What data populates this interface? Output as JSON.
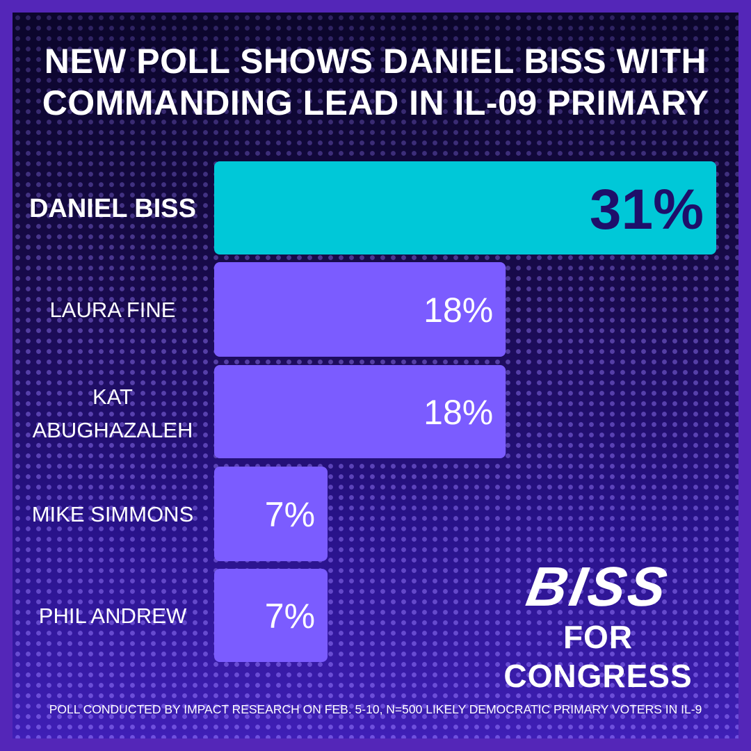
{
  "chart_data": {
    "type": "bar",
    "orientation": "horizontal",
    "title": "NEW POLL SHOWS DANIEL BISS WITH COMMANDING LEAD IN IL-09 PRIMARY",
    "categories": [
      "DANIEL BISS",
      "LAURA FINE",
      "KAT ABUGHAZALEH",
      "MIKE SIMMONS",
      "PHIL ANDREW"
    ],
    "values": [
      31,
      18,
      18,
      7,
      7
    ],
    "value_labels": [
      "31%",
      "18%",
      "18%",
      "7%",
      "7%"
    ],
    "xlim": [
      0,
      31
    ],
    "grid": false,
    "legend": "none",
    "colors": {
      "highlight": "#00c8d8",
      "default": "#7b5cff",
      "highlight_text": "#1e0f6a",
      "default_text": "#ffffff"
    }
  },
  "logo": {
    "line1": "BISS",
    "line2": "FOR CONGRESS"
  },
  "footnote": "POLL CONDUCTED BY IMPACT RESEARCH ON FEB. 5-10, N=500 LIKELY DEMOCRATIC PRIMARY VOTERS IN IL-9"
}
